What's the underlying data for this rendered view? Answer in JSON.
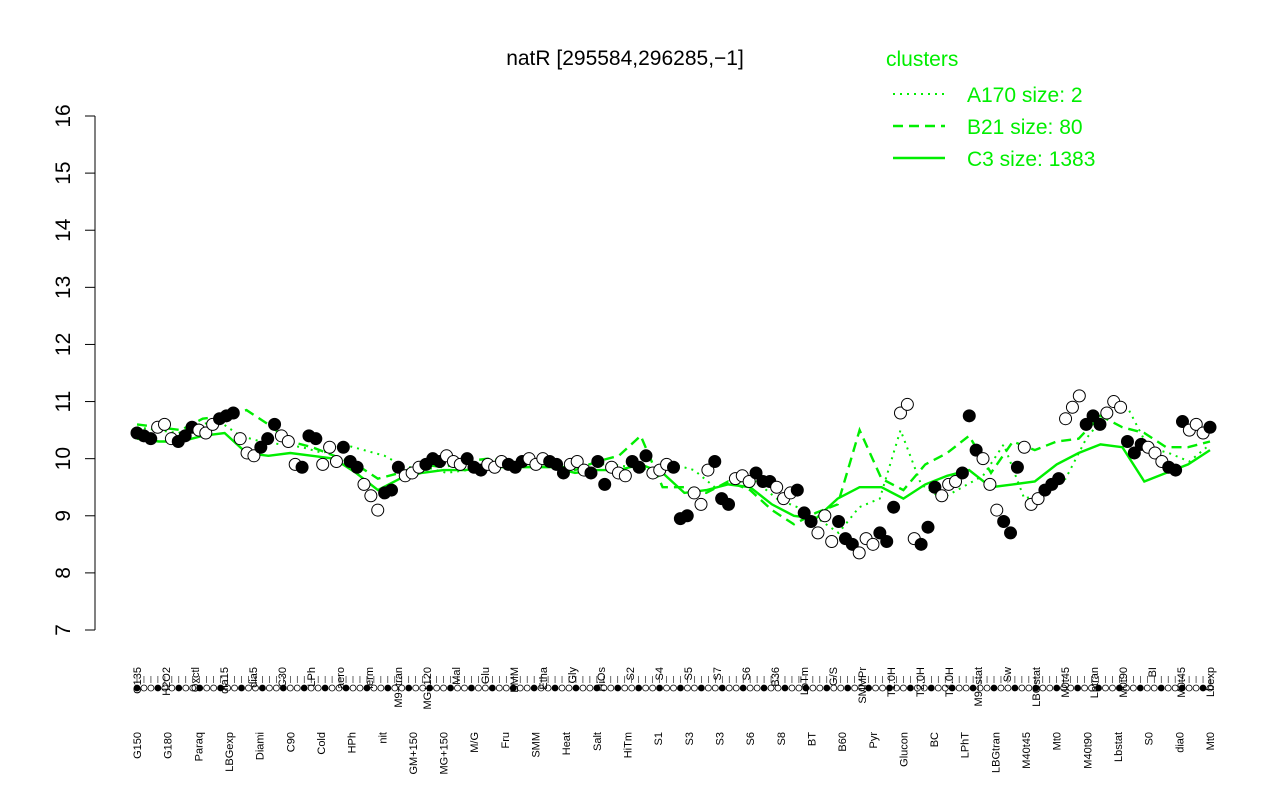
{
  "chart_data": {
    "type": "line",
    "title": "natR [295584,296285,−1]",
    "xlabel": "",
    "ylabel": "",
    "ylim": [
      7,
      16
    ],
    "yticks": [
      7,
      8,
      9,
      10,
      11,
      12,
      13,
      14,
      15,
      16
    ],
    "xticks_upper": [
      "G135",
      "H2O2",
      "Oxctl",
      "dia15",
      "dia5",
      "C30",
      "LPh",
      "aero",
      "ferm",
      "M9−tran",
      "MG+120",
      "Mal",
      "Glu",
      "BMM",
      "Etha",
      "Gly",
      "HiOs",
      "S2",
      "S4",
      "S5",
      "S7",
      "S6",
      "B36",
      "LoTm",
      "G/S",
      "SMMPr",
      "T1.0H",
      "T2.0H",
      "T4.0H",
      "M9−stat",
      "Sw",
      "LBGstat",
      "M0t45",
      "Lbtran",
      "M0t90",
      "BI",
      "M0t45",
      "Lbexp"
    ],
    "xticks_lower": [
      "G150",
      "G180",
      "Paraq",
      "LBGexp",
      "Diami",
      "C90",
      "Cold",
      "HPh",
      "nit",
      "GM+150",
      "MG+150",
      "M/G",
      "Fru",
      "SMM",
      "Heat",
      "Salt",
      "HiTm",
      "S1",
      "S3",
      "S3",
      "S6",
      "S8",
      "BT",
      "B60",
      "Pyr",
      "Glucon",
      "BC",
      "LPhT",
      "LBGtran",
      "M40t45",
      "Mt0",
      "M40t90",
      "Lbstat",
      "S0",
      "dia0",
      "Mt0"
    ],
    "points": [
      10.45,
      10.4,
      10.35,
      10.55,
      10.6,
      10.35,
      10.3,
      10.4,
      10.55,
      10.5,
      10.45,
      10.6,
      10.7,
      10.75,
      10.8,
      10.35,
      10.1,
      10.05,
      10.2,
      10.35,
      10.6,
      10.4,
      10.3,
      9.9,
      9.85,
      10.4,
      10.35,
      9.9,
      10.2,
      9.95,
      10.2,
      9.95,
      9.85,
      9.55,
      9.35,
      9.1,
      9.4,
      9.45,
      9.85,
      9.7,
      9.75,
      9.85,
      9.9,
      10.0,
      9.95,
      10.05,
      9.95,
      9.9,
      10.0,
      9.85,
      9.8,
      9.9,
      9.85,
      9.95,
      9.9,
      9.85,
      9.95,
      10.0,
      9.9,
      10.0,
      9.95,
      9.9,
      9.75,
      9.9,
      9.95,
      9.8,
      9.75,
      9.95,
      9.55,
      9.85,
      9.75,
      9.7,
      9.95,
      9.85,
      10.05,
      9.75,
      9.8,
      9.9,
      9.85,
      8.95,
      9.0,
      9.4,
      9.2,
      9.8,
      9.95,
      9.3,
      9.2,
      9.65,
      9.7,
      9.6,
      9.75,
      9.6,
      9.6,
      9.5,
      9.3,
      9.4,
      9.45,
      9.05,
      8.9,
      8.7,
      9.0,
      8.55,
      8.9,
      8.6,
      8.5,
      8.35,
      8.6,
      8.5,
      8.7,
      8.55,
      9.15,
      10.8,
      10.95,
      8.6,
      8.5,
      8.8,
      9.5,
      9.35,
      9.55,
      9.6,
      9.75,
      10.75,
      10.15,
      10.0,
      9.55,
      9.1,
      8.9,
      8.7,
      9.85,
      10.2,
      9.2,
      9.3,
      9.45,
      9.55,
      9.65,
      10.7,
      10.9,
      11.1,
      10.6,
      10.75,
      10.6,
      10.8,
      11.0,
      10.9,
      10.3,
      10.1,
      10.25,
      10.2,
      10.1,
      9.95,
      9.85,
      9.8,
      10.65,
      10.5,
      10.6,
      10.45,
      10.55
    ],
    "series": [
      {
        "name": "A170 size: 2",
        "style": "dotted",
        "values": [
          10.55,
          10.5,
          10.45,
          10.6,
          10.65,
          10.4,
          10.3,
          10.25,
          10.2,
          10.1,
          10.25,
          10.15,
          10.05,
          9.85,
          9.85,
          9.75,
          9.8,
          9.9,
          9.9,
          9.95,
          9.85,
          9.9,
          9.9,
          9.9,
          9.85,
          9.8,
          9.9,
          9.8,
          9.5,
          9.6,
          9.6,
          9.3,
          9.15,
          8.95,
          8.7,
          9.15,
          9.3,
          10.5,
          9.55,
          9.3,
          9.5,
          9.7,
          10.25,
          9.3,
          9.4,
          9.65,
          10.35,
          10.8,
          10.9,
          10.2,
          10.1,
          9.95,
          10.25
        ]
      },
      {
        "name": "B21 size: 80",
        "style": "dashed",
        "values": [
          10.6,
          10.55,
          10.5,
          10.7,
          10.75,
          10.85,
          10.6,
          10.3,
          10.2,
          10.05,
          9.9,
          9.65,
          9.75,
          9.9,
          9.85,
          9.95,
          10.0,
          9.95,
          9.9,
          9.9,
          9.8,
          9.95,
          10.05,
          10.4,
          9.5,
          9.5,
          9.4,
          9.6,
          9.45,
          9.1,
          8.85,
          9.05,
          9.2,
          10.5,
          9.65,
          9.45,
          9.9,
          10.1,
          10.4,
          9.75,
          10.3,
          10.15,
          10.3,
          10.35,
          10.75,
          10.55,
          10.45,
          10.2,
          10.2,
          10.3
        ]
      },
      {
        "name": "C3 size: 1383",
        "style": "solid",
        "values": [
          10.35,
          10.3,
          10.3,
          10.4,
          10.45,
          10.1,
          10.05,
          10.1,
          10.05,
          10.0,
          9.75,
          9.45,
          9.65,
          9.75,
          9.8,
          9.8,
          9.85,
          9.85,
          9.85,
          9.85,
          9.75,
          9.8,
          9.8,
          9.9,
          9.75,
          9.4,
          9.45,
          9.55,
          9.5,
          9.2,
          9.0,
          8.95,
          9.3,
          9.5,
          9.5,
          9.3,
          9.55,
          9.7,
          9.8,
          9.5,
          9.55,
          9.6,
          9.9,
          10.1,
          10.25,
          10.2,
          9.6,
          9.75,
          9.9,
          10.15
        ]
      }
    ],
    "legend": {
      "title": "clusters",
      "position": "top-right",
      "entries": [
        "A170 size: 2",
        "B21 size: 80",
        "C3 size: 1383"
      ]
    },
    "grid": false,
    "colors": {
      "points_dark": "#000000",
      "points_light": "#ffffff",
      "series": "#00ee00"
    }
  }
}
